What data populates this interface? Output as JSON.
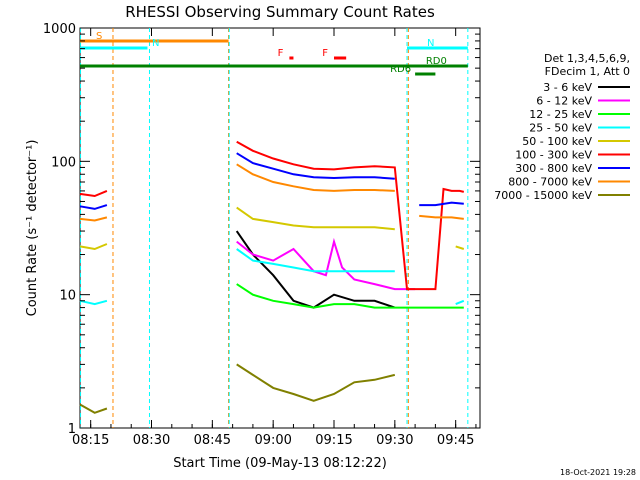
{
  "chart_data": {
    "type": "line",
    "title": "RHESSI Observing Summary Count Rates",
    "xlabel": "Start Time (09-May-13 08:12:22)",
    "ylabel": "Count Rate (s⁻¹ detector⁻¹)",
    "yscale": "log",
    "ylim": [
      1,
      1000
    ],
    "xlim": [
      "08:12:22",
      "09:51:00"
    ],
    "x_ticks": [
      "08:15",
      "08:30",
      "08:45",
      "09:00",
      "09:15",
      "09:30",
      "09:45"
    ],
    "y_ticks": [
      "1",
      "10",
      "100",
      "1000"
    ],
    "legend_header": [
      "Det 1,3,4,5,6,9,",
      "FDecim 1, Att 0"
    ],
    "legend_placement": "right",
    "timestamp": "18-Oct-2021 19:28",
    "series": [
      {
        "name": "3 - 6 keV",
        "color": "#000000",
        "x": [
          "08:12:22",
          "08:16",
          "08:19",
          "08:21",
          "08:50",
          "08:51",
          "08:55",
          "09:00",
          "09:05",
          "09:10",
          "09:15",
          "09:20",
          "09:25",
          "09:30",
          "09:33"
        ],
        "y": [
          null,
          null,
          null,
          null,
          null,
          30,
          20,
          14,
          9,
          8,
          10,
          9,
          9,
          8,
          null
        ]
      },
      {
        "name": "6 - 12 keV",
        "color": "#ff00ff",
        "x": [
          "08:12:22",
          "08:16",
          "08:19",
          "08:21",
          "08:50",
          "08:51",
          "08:55",
          "09:00",
          "09:05",
          "09:10",
          "09:13",
          "09:15",
          "09:17",
          "09:20",
          "09:25",
          "09:30",
          "09:35"
        ],
        "y": [
          null,
          null,
          null,
          null,
          null,
          25,
          20,
          18,
          22,
          15,
          14,
          25,
          16,
          13,
          12,
          11,
          11
        ]
      },
      {
        "name": "12 - 25 keV",
        "color": "#00ff00",
        "x": [
          "08:12:22",
          "08:16",
          "08:19",
          "08:21",
          "08:50",
          "08:51",
          "08:55",
          "09:00",
          "09:05",
          "09:10",
          "09:15",
          "09:20",
          "09:25",
          "09:30",
          "09:35",
          "09:40",
          "09:45",
          "09:47"
        ],
        "y": [
          null,
          null,
          null,
          null,
          null,
          12,
          10,
          9,
          8.5,
          8,
          8.5,
          8.5,
          8,
          8,
          8,
          8,
          8,
          8
        ]
      },
      {
        "name": "25 - 50 keV",
        "color": "#00ffff",
        "x": [
          "08:12:22",
          "08:16",
          "08:19",
          "08:21",
          "08:50",
          "08:51",
          "08:55",
          "09:00",
          "09:05",
          "09:10",
          "09:15",
          "09:20",
          "09:25",
          "09:30",
          "09:33",
          "09:44",
          "09:45",
          "09:47"
        ],
        "y": [
          9,
          8.5,
          9,
          null,
          null,
          22,
          18,
          17,
          16,
          15,
          15,
          15,
          15,
          15,
          null,
          null,
          8.5,
          9
        ]
      },
      {
        "name": "50 - 100 keV",
        "color": "#d4c800",
        "x": [
          "08:12:22",
          "08:16",
          "08:19",
          "08:21",
          "08:50",
          "08:51",
          "08:55",
          "09:00",
          "09:05",
          "09:10",
          "09:15",
          "09:20",
          "09:25",
          "09:30",
          "09:33",
          "09:44",
          "09:45",
          "09:47"
        ],
        "y": [
          23,
          22,
          24,
          null,
          null,
          45,
          37,
          35,
          33,
          32,
          32,
          32,
          32,
          31,
          null,
          null,
          23,
          22
        ]
      },
      {
        "name": "100 - 300 keV",
        "color": "#ff0000",
        "x": [
          "08:12:22",
          "08:16",
          "08:19",
          "08:21",
          "08:50",
          "08:51",
          "08:55",
          "09:00",
          "09:05",
          "09:10",
          "09:15",
          "09:20",
          "09:25",
          "09:30",
          "09:33",
          "09:36",
          "09:40",
          "09:42",
          "09:44",
          "09:46",
          "09:47"
        ],
        "y": [
          57,
          55,
          60,
          null,
          null,
          140,
          120,
          105,
          95,
          88,
          87,
          90,
          92,
          90,
          11,
          11,
          11,
          62,
          60,
          60,
          59
        ]
      },
      {
        "name": "300 - 800 keV",
        "color": "#0000ff",
        "x": [
          "08:12:22",
          "08:16",
          "08:19",
          "08:21",
          "08:50",
          "08:51",
          "08:55",
          "09:00",
          "09:05",
          "09:10",
          "09:15",
          "09:20",
          "09:25",
          "09:30",
          "09:33",
          "09:36",
          "09:40",
          "09:44",
          "09:47"
        ],
        "y": [
          46,
          44,
          47,
          null,
          null,
          115,
          97,
          88,
          80,
          76,
          75,
          76,
          76,
          74,
          null,
          47,
          47,
          49,
          48
        ]
      },
      {
        "name": "800 - 7000 keV",
        "color": "#ff8800",
        "x": [
          "08:12:22",
          "08:16",
          "08:19",
          "08:21",
          "08:50",
          "08:51",
          "08:55",
          "09:00",
          "09:05",
          "09:10",
          "09:15",
          "09:20",
          "09:25",
          "09:30",
          "09:33",
          "09:36",
          "09:40",
          "09:44",
          "09:47"
        ],
        "y": [
          37,
          36,
          38,
          null,
          null,
          95,
          80,
          70,
          65,
          61,
          60,
          61,
          61,
          60,
          null,
          39,
          38,
          38,
          37
        ]
      },
      {
        "name": "7000 - 15000 keV",
        "color": "#808000",
        "x": [
          "08:12:22",
          "08:16",
          "08:19",
          "08:21",
          "08:50",
          "08:51",
          "08:55",
          "09:00",
          "09:05",
          "09:10",
          "09:15",
          "09:20",
          "09:25",
          "09:30",
          "09:33"
        ],
        "y": [
          1.5,
          1.3,
          1.4,
          null,
          null,
          3,
          2.5,
          2,
          1.8,
          1.6,
          1.8,
          2.2,
          2.3,
          2.5,
          null
        ]
      }
    ],
    "flags": [
      {
        "label": "S",
        "color": "#ff8800",
        "row": 1,
        "start": "08:12:22",
        "end": "08:49:00"
      },
      {
        "label": "N",
        "color": "#00ffff",
        "row": 2,
        "start": "08:12:22",
        "end": "08:29:00"
      },
      {
        "label": "N",
        "color": "#00ffff",
        "row": 2,
        "start": "09:33:00",
        "end": "09:48:00"
      },
      {
        "label": "F",
        "color": "#ff0000",
        "row": 3,
        "start": "09:04:00",
        "end": "09:05:00"
      },
      {
        "label": "F",
        "color": "#ff0000",
        "row": 3,
        "start": "09:15:00",
        "end": "09:18:00"
      },
      {
        "label": "RD0",
        "color": "#008000",
        "row": 4,
        "start": "08:12:22",
        "end": "09:48:00"
      },
      {
        "label": "RD6",
        "color": "#008000",
        "row": 5,
        "start": "09:35:00",
        "end": "09:40:00"
      }
    ],
    "vlines": [
      {
        "time": "08:12:30",
        "color": "#00ffff"
      },
      {
        "time": "08:20:30",
        "color": "#ff8800"
      },
      {
        "time": "08:29:30",
        "color": "#00ffff"
      },
      {
        "time": "08:49:00",
        "color": "#ff8800"
      },
      {
        "time": "08:49:10",
        "color": "#00ffff"
      },
      {
        "time": "09:33:00",
        "color": "#00ffff"
      },
      {
        "time": "09:33:20",
        "color": "#ff8800"
      },
      {
        "time": "09:48:00",
        "color": "#00ffff"
      }
    ]
  }
}
